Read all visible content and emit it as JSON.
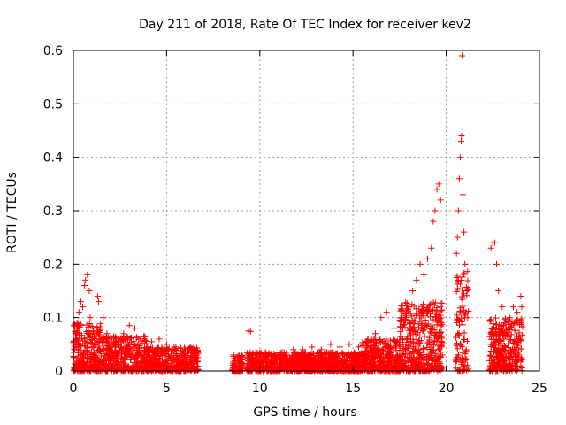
{
  "chart_data": {
    "type": "scatter",
    "title": "Day 211 of 2018, Rate Of TEC Index for receiver kev2",
    "xlabel": "GPS time / hours",
    "ylabel": "ROTI / TECUs",
    "xlim": [
      0,
      25
    ],
    "ylim": [
      0,
      0.6
    ],
    "x_ticks": [
      0,
      5,
      10,
      15,
      20,
      25
    ],
    "y_ticks": [
      0,
      0.1,
      0.2,
      0.3,
      0.4,
      0.5,
      0.6
    ],
    "x_tick_labels": [
      "0",
      "5",
      "10",
      "15",
      "20",
      "25"
    ],
    "y_tick_labels": [
      "0",
      "0.1",
      "0.2",
      "0.3",
      "0.4",
      "0.5",
      "0.6"
    ],
    "grid": true,
    "marker": "+",
    "color": "#ff0000",
    "envelope": {
      "description": "approximate upper envelope of the dense point cloud",
      "x": [
        0,
        0.5,
        0.8,
        1.2,
        2,
        3,
        4,
        5,
        6,
        6.7,
        8.5,
        9,
        9.4,
        10,
        11,
        12,
        13,
        14,
        15,
        16,
        16.8,
        17.5,
        18,
        18.5,
        19,
        19.5,
        19.8
      ],
      "y": [
        0.08,
        0.15,
        0.18,
        0.14,
        0.06,
        0.08,
        0.06,
        0.06,
        0.04,
        0.03,
        0.03,
        0.03,
        0.075,
        0.03,
        0.035,
        0.04,
        0.045,
        0.05,
        0.05,
        0.06,
        0.11,
        0.09,
        0.12,
        0.15,
        0.2,
        0.28,
        0.35
      ]
    },
    "points": [
      [
        0.05,
        0.085
      ],
      [
        0.1,
        0.07
      ],
      [
        0.2,
        0.09
      ],
      [
        0.3,
        0.11
      ],
      [
        0.4,
        0.13
      ],
      [
        0.5,
        0.12
      ],
      [
        0.6,
        0.16
      ],
      [
        0.65,
        0.17
      ],
      [
        0.75,
        0.18
      ],
      [
        0.85,
        0.15
      ],
      [
        0.9,
        0.1
      ],
      [
        1.3,
        0.14
      ],
      [
        1.35,
        0.13
      ],
      [
        1.6,
        0.1
      ],
      [
        1.8,
        0.07
      ],
      [
        2.3,
        0.06
      ],
      [
        2.7,
        0.07
      ],
      [
        3.0,
        0.085
      ],
      [
        3.3,
        0.08
      ],
      [
        3.6,
        0.06
      ],
      [
        4.2,
        0.055
      ],
      [
        4.6,
        0.06
      ],
      [
        5.0,
        0.05
      ],
      [
        5.5,
        0.045
      ],
      [
        6.0,
        0.04
      ],
      [
        6.5,
        0.04
      ],
      [
        6.6,
        0.03
      ],
      [
        8.6,
        0.03
      ],
      [
        8.9,
        0.028
      ],
      [
        9.4,
        0.075
      ],
      [
        9.5,
        0.074
      ],
      [
        9.8,
        0.03
      ],
      [
        10.3,
        0.035
      ],
      [
        10.8,
        0.03
      ],
      [
        11.3,
        0.035
      ],
      [
        11.8,
        0.04
      ],
      [
        12.3,
        0.04
      ],
      [
        12.8,
        0.045
      ],
      [
        13.3,
        0.04
      ],
      [
        13.8,
        0.05
      ],
      [
        14.3,
        0.045
      ],
      [
        14.8,
        0.05
      ],
      [
        15.3,
        0.045
      ],
      [
        15.8,
        0.055
      ],
      [
        16.2,
        0.07
      ],
      [
        16.5,
        0.1
      ],
      [
        16.8,
        0.11
      ],
      [
        17.2,
        0.08
      ],
      [
        17.6,
        0.1
      ],
      [
        18.0,
        0.12
      ],
      [
        18.2,
        0.15
      ],
      [
        18.4,
        0.17
      ],
      [
        18.6,
        0.2
      ],
      [
        18.8,
        0.18
      ],
      [
        19.0,
        0.21
      ],
      [
        19.2,
        0.23
      ],
      [
        19.3,
        0.28
      ],
      [
        19.4,
        0.3
      ],
      [
        19.5,
        0.34
      ],
      [
        19.6,
        0.35
      ],
      [
        19.7,
        0.32
      ],
      [
        20.55,
        0.22
      ],
      [
        20.6,
        0.25
      ],
      [
        20.65,
        0.3
      ],
      [
        20.7,
        0.36
      ],
      [
        20.75,
        0.4
      ],
      [
        20.8,
        0.43
      ],
      [
        20.82,
        0.44
      ],
      [
        20.85,
        0.59
      ],
      [
        20.9,
        0.33
      ],
      [
        20.95,
        0.26
      ],
      [
        21.0,
        0.2
      ],
      [
        21.1,
        0.15
      ],
      [
        21.15,
        0.1
      ],
      [
        22.4,
        0.23
      ],
      [
        22.5,
        0.24
      ],
      [
        22.6,
        0.24
      ],
      [
        22.7,
        0.2
      ],
      [
        22.8,
        0.15
      ],
      [
        23.0,
        0.12
      ],
      [
        23.2,
        0.09
      ],
      [
        23.4,
        0.1
      ],
      [
        23.6,
        0.12
      ],
      [
        23.8,
        0.11
      ],
      [
        24.0,
        0.14
      ],
      [
        24.05,
        0.12
      ]
    ],
    "segments": [
      {
        "x0": 0.0,
        "x1": 1.5,
        "ymin": 0.0,
        "ymax": 0.09,
        "density": 1.0
      },
      {
        "x0": 1.5,
        "x1": 4.0,
        "ymin": 0.0,
        "ymax": 0.065,
        "density": 0.9
      },
      {
        "x0": 4.0,
        "x1": 6.7,
        "ymin": 0.0,
        "ymax": 0.045,
        "density": 0.9
      },
      {
        "x0": 8.5,
        "x1": 9.1,
        "ymin": 0.0,
        "ymax": 0.03,
        "density": 0.7
      },
      {
        "x0": 9.3,
        "x1": 15.5,
        "ymin": 0.0,
        "ymax": 0.035,
        "density": 1.0
      },
      {
        "x0": 15.5,
        "x1": 17.5,
        "ymin": 0.0,
        "ymax": 0.06,
        "density": 1.0
      },
      {
        "x0": 17.5,
        "x1": 19.8,
        "ymin": 0.0,
        "ymax": 0.13,
        "density": 1.1
      },
      {
        "x0": 20.5,
        "x1": 21.2,
        "ymin": 0.0,
        "ymax": 0.2,
        "density": 0.8
      },
      {
        "x0": 22.3,
        "x1": 24.1,
        "ymin": 0.0,
        "ymax": 0.1,
        "density": 1.0
      }
    ]
  }
}
